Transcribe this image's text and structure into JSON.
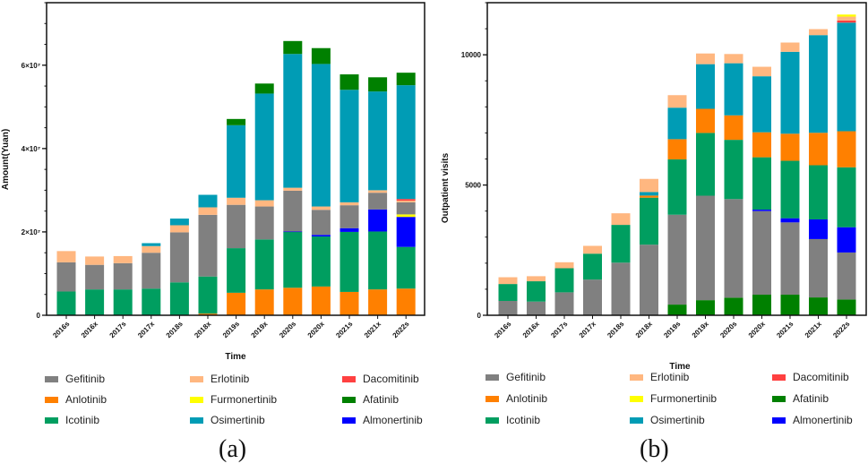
{
  "legend": [
    {
      "name": "Gefitinib",
      "color": "#808080"
    },
    {
      "name": "Erlotinib",
      "color": "#FFB780"
    },
    {
      "name": "Dacomitinib",
      "color": "#FF4040"
    },
    {
      "name": "Anlotinib",
      "color": "#FF8000"
    },
    {
      "name": "Furmonertinib",
      "color": "#FFFF00"
    },
    {
      "name": "Afatinib",
      "color": "#008000"
    },
    {
      "name": "Icotinib",
      "color": "#009E60"
    },
    {
      "name": "Osimertinib",
      "color": "#009CB5"
    },
    {
      "name": "Almonertinib",
      "color": "#0000FF"
    }
  ],
  "panels": [
    "(a)",
    "(b)"
  ],
  "chart_data": [
    {
      "type": "bar",
      "stacked": true,
      "xlabel": "Time",
      "ylabel": "Amount(Yuan)",
      "ylim": [
        0,
        75000000
      ],
      "yticks": [
        0,
        20000000,
        40000000,
        60000000
      ],
      "ytick_labels": [
        "0",
        "2×10⁷",
        "4×10⁷",
        "6×10⁷"
      ],
      "minor_step": 5000000,
      "categories": [
        "2016s",
        "2016x",
        "2017s",
        "2017x",
        "2018s",
        "2018x",
        "2019s",
        "2019x",
        "2020s",
        "2020x",
        "2021s",
        "2021x",
        "2022s"
      ],
      "series": [
        {
          "name": "Anlotinib",
          "color": "#FF8000",
          "values": [
            0,
            0,
            0,
            0,
            0,
            400000,
            5400000,
            6200000,
            6600000,
            6900000,
            5600000,
            6200000,
            6400000
          ]
        },
        {
          "name": "Icotinib",
          "color": "#009E60",
          "values": [
            5700000,
            6200000,
            6200000,
            6400000,
            7900000,
            8900000,
            10700000,
            12000000,
            13400000,
            12000000,
            14400000,
            13900000,
            10000000
          ]
        },
        {
          "name": "Almonertinib",
          "color": "#0000FF",
          "values": [
            0,
            0,
            0,
            0,
            0,
            0,
            0,
            0,
            100000,
            400000,
            900000,
            5300000,
            7200000
          ]
        },
        {
          "name": "Furmonertinib",
          "color": "#FFFF00",
          "values": [
            0,
            0,
            0,
            0,
            0,
            0,
            0,
            0,
            0,
            0,
            0,
            0,
            600000
          ]
        },
        {
          "name": "Gefitinib",
          "color": "#808080",
          "values": [
            7000000,
            5900000,
            6300000,
            8600000,
            12000000,
            14800000,
            10400000,
            7900000,
            9800000,
            6000000,
            5500000,
            4000000,
            2900000
          ]
        },
        {
          "name": "Erlotinib",
          "color": "#FFB780",
          "values": [
            2700000,
            2000000,
            1700000,
            1600000,
            1700000,
            1800000,
            1700000,
            1500000,
            700000,
            800000,
            700000,
            600000,
            400000
          ]
        },
        {
          "name": "Dacomitinib",
          "color": "#FF4040",
          "values": [
            0,
            0,
            0,
            0,
            0,
            0,
            0,
            0,
            0,
            0,
            0,
            0,
            400000
          ]
        },
        {
          "name": "Osimertinib",
          "color": "#009CB5",
          "values": [
            0,
            0,
            0,
            700000,
            1600000,
            3000000,
            17400000,
            25600000,
            32100000,
            34200000,
            27000000,
            23700000,
            27300000
          ]
        },
        {
          "name": "Afatinib",
          "color": "#008000",
          "values": [
            0,
            0,
            0,
            0,
            0,
            0,
            1500000,
            2400000,
            3100000,
            3800000,
            3700000,
            3400000,
            3000000
          ]
        }
      ]
    },
    {
      "type": "bar",
      "stacked": true,
      "xlabel": "Time",
      "ylabel": "Outpatient visits",
      "ylim": [
        0,
        12000
      ],
      "yticks": [
        0,
        5000,
        10000
      ],
      "ytick_labels": [
        "0",
        "5000",
        "10000"
      ],
      "minor_step": 1000,
      "categories": [
        "2016s",
        "2016x",
        "2017s",
        "2017x",
        "2018s",
        "2018x",
        "2019s",
        "2019x",
        "2020s",
        "2020x",
        "2021s",
        "2021x",
        "2022s"
      ],
      "series": [
        {
          "name": "Afatinib",
          "color": "#008000",
          "values": [
            0,
            0,
            0,
            0,
            0,
            0,
            410,
            580,
            675,
            790,
            790,
            685,
            605
          ]
        },
        {
          "name": "Gefitinib",
          "color": "#808080",
          "values": [
            550,
            525,
            880,
            1370,
            2020,
            2710,
            3450,
            4010,
            3785,
            3210,
            2775,
            2240,
            1805
          ]
        },
        {
          "name": "Almonertinib",
          "color": "#0000FF",
          "values": [
            0,
            0,
            0,
            0,
            0,
            0,
            0,
            0,
            0,
            55,
            160,
            755,
            970
          ]
        },
        {
          "name": "Icotinib",
          "color": "#009E60",
          "values": [
            650,
            780,
            925,
            995,
            1450,
            1805,
            2125,
            2410,
            2275,
            2010,
            2205,
            2080,
            2300
          ]
        },
        {
          "name": "Anlotinib",
          "color": "#FF8000",
          "values": [
            0,
            0,
            0,
            0,
            0,
            80,
            775,
            925,
            940,
            960,
            1040,
            1245,
            1385
          ]
        },
        {
          "name": "Osimertinib",
          "color": "#009CB5",
          "values": [
            0,
            0,
            0,
            0,
            0,
            135,
            1210,
            1715,
            2000,
            2150,
            3145,
            3750,
            4170
          ]
        },
        {
          "name": "Dacomitinib",
          "color": "#FF4040",
          "values": [
            0,
            0,
            0,
            0,
            0,
            0,
            0,
            0,
            0,
            0,
            0,
            0,
            80
          ]
        },
        {
          "name": "Erlotinib",
          "color": "#FFB780",
          "values": [
            260,
            195,
            230,
            300,
            445,
            505,
            480,
            410,
            355,
            365,
            355,
            230,
            150
          ]
        },
        {
          "name": "Furmonertinib",
          "color": "#FFFF00",
          "values": [
            0,
            0,
            0,
            0,
            0,
            0,
            0,
            0,
            0,
            0,
            0,
            0,
            80
          ]
        }
      ]
    }
  ]
}
